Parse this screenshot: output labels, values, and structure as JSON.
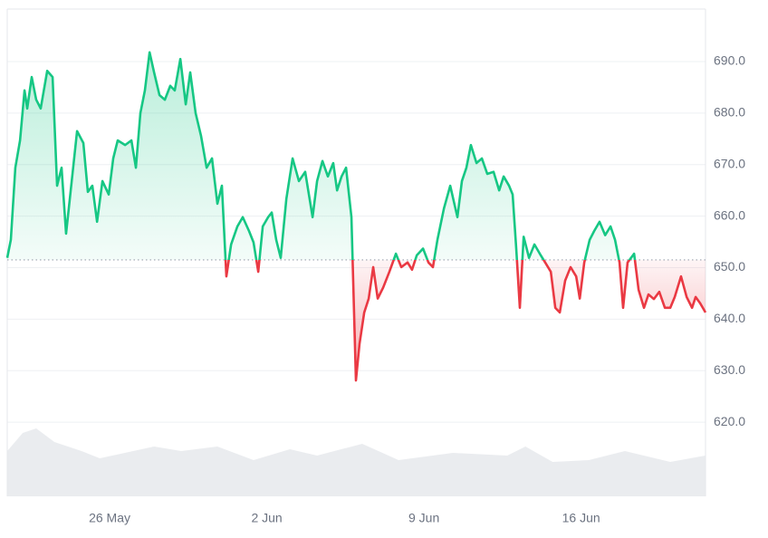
{
  "chart_data": {
    "type": "line",
    "x": [
      -4.56,
      -4.4,
      -4.2,
      -3.99,
      -3.79,
      -3.67,
      -3.47,
      -3.27,
      -3.07,
      -2.78,
      -2.54,
      -2.34,
      -2.14,
      -1.94,
      -1.74,
      -1.45,
      -1.17,
      -0.97,
      -0.77,
      -0.56,
      -0.32,
      -0.04,
      0.16,
      0.36,
      0.69,
      0.97,
      1.17,
      1.37,
      1.57,
      1.78,
      1.98,
      2.22,
      2.46,
      2.7,
      2.9,
      3.15,
      3.39,
      3.59,
      3.83,
      4.07,
      4.32,
      4.56,
      4.8,
      5.0,
      5.2,
      5.41,
      5.69,
      5.93,
      6.21,
      6.41,
      6.62,
      6.82,
      7.06,
      7.22,
      7.42,
      7.62,
      7.87,
      8.15,
      8.43,
      8.71,
      9.04,
      9.24,
      9.48,
      9.72,
      9.96,
      10.13,
      10.33,
      10.53,
      10.77,
      10.97,
      11.13,
      11.34,
      11.54,
      11.74,
      11.94,
      12.18,
      12.46,
      12.75,
      12.99,
      13.27,
      13.47,
      13.68,
      13.96,
      14.2,
      14.4,
      14.6,
      14.89,
      15.17,
      15.49,
      15.69,
      15.89,
      16.09,
      16.34,
      16.58,
      16.82,
      17.1,
      17.35,
      17.55,
      17.79,
      17.95,
      18.11,
      18.27,
      18.44,
      18.68,
      18.92,
      19.16,
      19.4,
      19.65,
      19.85,
      20.05,
      20.29,
      20.53,
      20.78,
      20.94,
      21.14,
      21.38,
      21.58,
      21.82,
      22.07,
      22.31,
      22.51,
      22.71,
      22.87,
      23.07,
      23.36,
      23.56,
      23.8,
      24.0,
      24.24,
      24.48,
      24.73,
      24.97,
      25.17,
      25.45,
      25.7,
      25.94,
      26.1,
      26.3,
      26.54
    ],
    "values": [
      651.9,
      655.4,
      669.4,
      674.7,
      684.4,
      680.9,
      687,
      682.6,
      680.9,
      688.2,
      687,
      665.9,
      669.4,
      656.6,
      664.7,
      676.5,
      674.2,
      664.7,
      665.9,
      658.9,
      666.8,
      664.2,
      671.2,
      674.7,
      673.8,
      674.7,
      669.4,
      680,
      684.4,
      691.8,
      687.9,
      683.5,
      682.6,
      685.3,
      684.4,
      690.5,
      681.7,
      687.9,
      680,
      675.6,
      669.4,
      671.2,
      662.4,
      665.9,
      648.3,
      654.5,
      658,
      659.8,
      657.1,
      654.9,
      649.2,
      658,
      659.8,
      660.7,
      655.4,
      651.9,
      663.3,
      671.2,
      666.8,
      668.6,
      659.8,
      666.8,
      670.7,
      667.7,
      670.3,
      665,
      667.7,
      669.4,
      659.8,
      628.1,
      635.2,
      641.3,
      644,
      650.1,
      644,
      646.1,
      649.2,
      652.7,
      650.1,
      651,
      649.6,
      652.4,
      653.7,
      651,
      650.1,
      655.4,
      661.5,
      665.9,
      659.8,
      666.8,
      669.4,
      673.8,
      670.3,
      671.2,
      668.2,
      668.6,
      665,
      667.7,
      665.9,
      664.2,
      653.7,
      642.2,
      656,
      651.9,
      654.5,
      652.7,
      651,
      649.2,
      642.2,
      641.3,
      647.5,
      650.1,
      648.3,
      644,
      651,
      655.4,
      657.1,
      658.9,
      656.3,
      658,
      655.4,
      651,
      642.2,
      651,
      652.7,
      645.7,
      642.2,
      644.8,
      643.9,
      645.3,
      642.2,
      642.2,
      644.3,
      648.3,
      644.3,
      642.2,
      644.3,
      643.1,
      641.3
    ],
    "baseline": 651.5,
    "colors": {
      "up": "#16c784",
      "down": "#ea3943",
      "volume": "#e5e7eb"
    },
    "volume": {
      "x": [
        -4.56,
        -3.87,
        -3.27,
        -2.46,
        -1.25,
        -0.44,
        1.98,
        3.19,
        4.8,
        6.41,
        8.03,
        9.24,
        11.25,
        12.87,
        15.29,
        17.71,
        18.52,
        19.73,
        21.34,
        22.95,
        24.97,
        26.54
      ],
      "values": [
        50,
        70,
        75,
        60,
        50,
        42,
        55,
        50,
        55,
        40,
        52,
        45,
        58,
        40,
        48,
        45,
        55,
        38,
        40,
        50,
        38,
        45
      ],
      "ylim": [
        0,
        100
      ]
    },
    "xlim": [
      -4.56,
      26.54
    ],
    "xticks": [
      {
        "value": 0,
        "label": "26 May"
      },
      {
        "value": 7,
        "label": "2 Jun"
      },
      {
        "value": 14,
        "label": "9 Jun"
      },
      {
        "value": 21,
        "label": "16 Jun"
      }
    ],
    "ylim": [
      605.6,
      700.2
    ],
    "yticks": [
      {
        "value": 620,
        "label": "620.0"
      },
      {
        "value": 630,
        "label": "630.0"
      },
      {
        "value": 640,
        "label": "640.0"
      },
      {
        "value": 650,
        "label": "650.0"
      },
      {
        "value": 660,
        "label": "660.0"
      },
      {
        "value": 670,
        "label": "670.0"
      },
      {
        "value": 680,
        "label": "680.0"
      },
      {
        "value": 690,
        "label": "690.0"
      }
    ],
    "grid": true
  }
}
